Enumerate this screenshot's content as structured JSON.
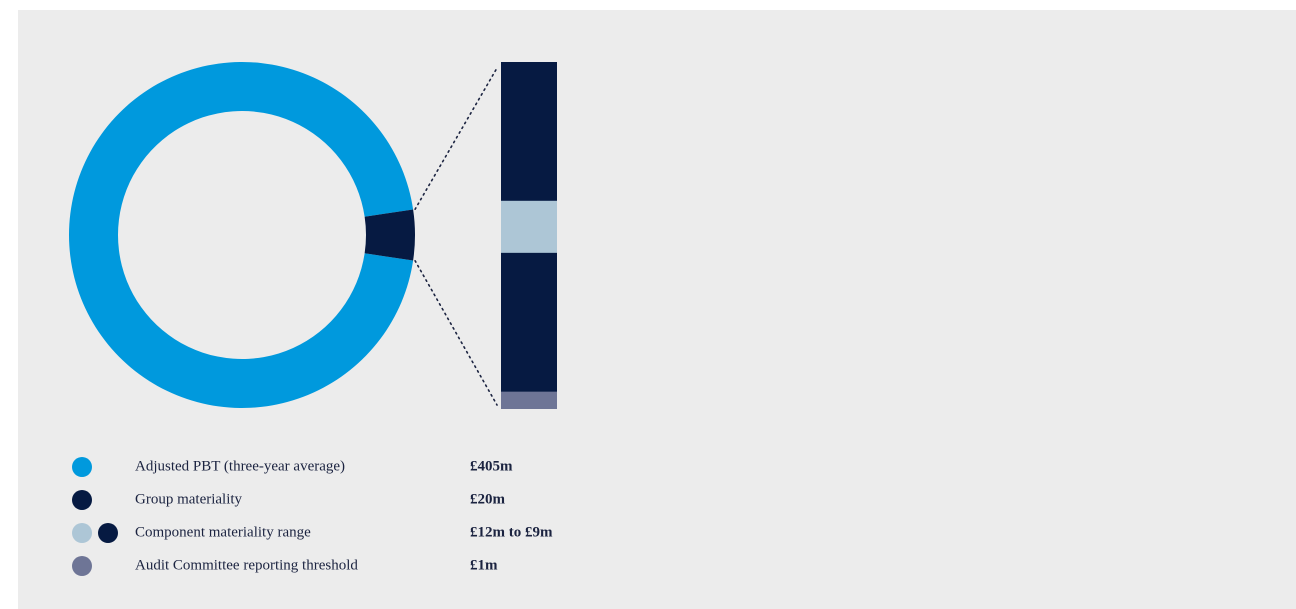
{
  "chart_data": {
    "type": "donut",
    "legend": [
      {
        "label": "Adjusted PBT (three-year average)",
        "value_label": "£405m",
        "values": [
          405
        ],
        "colors": [
          "#0099dd"
        ]
      },
      {
        "label": "Group materiality",
        "value_label": "£20m",
        "values": [
          20
        ],
        "colors": [
          "#061a42"
        ]
      },
      {
        "label": "Component materiality range",
        "value_label": "£12m to £9m",
        "values": [
          12,
          9
        ],
        "colors": [
          "#adc6d6",
          "#061a42"
        ]
      },
      {
        "label": "Audit Committee reporting threshold",
        "value_label": "£1m",
        "values": [
          1
        ],
        "colors": [
          "#6e7596"
        ]
      }
    ]
  }
}
